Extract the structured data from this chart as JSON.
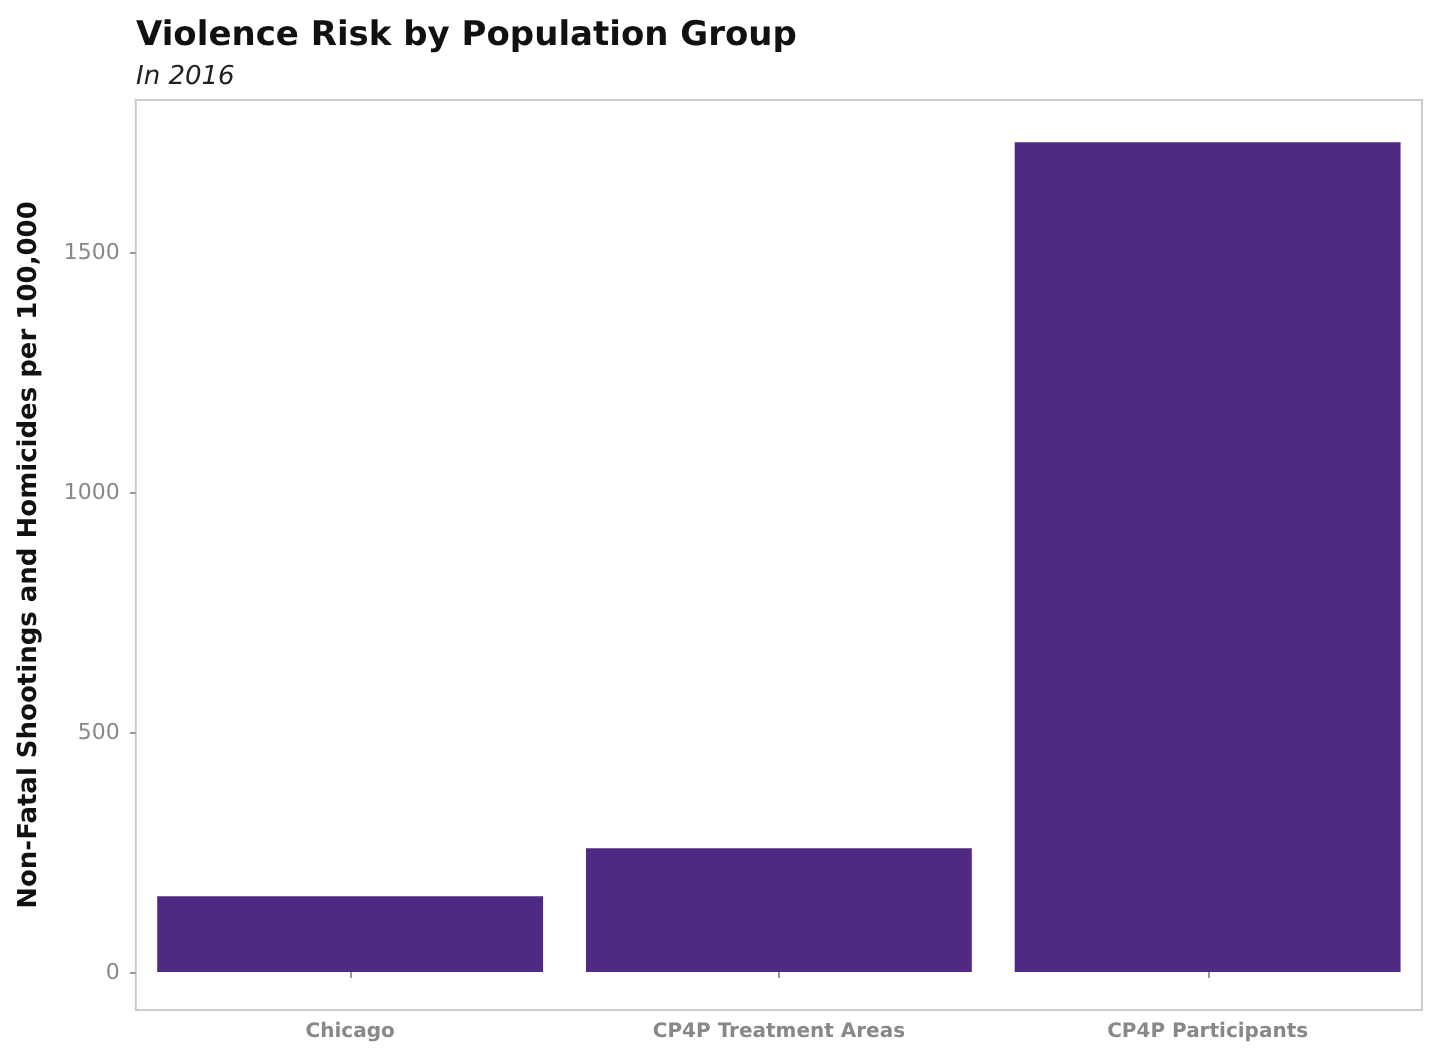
{
  "chart_data": {
    "type": "bar",
    "title": "Violence Risk by Population Group",
    "subtitle": "In 2016",
    "ylabel": "Non-Fatal Shootings and Homicides per 100,000",
    "categories": [
      "Chicago",
      "CP4P Treatment Areas",
      "CP4P Participants"
    ],
    "values": [
      158,
      258,
      1729
    ],
    "color": "#4e2a84",
    "ylim": [
      -79,
      1817
    ],
    "yticks": [
      0,
      500,
      1000,
      1500
    ],
    "grid": false
  }
}
